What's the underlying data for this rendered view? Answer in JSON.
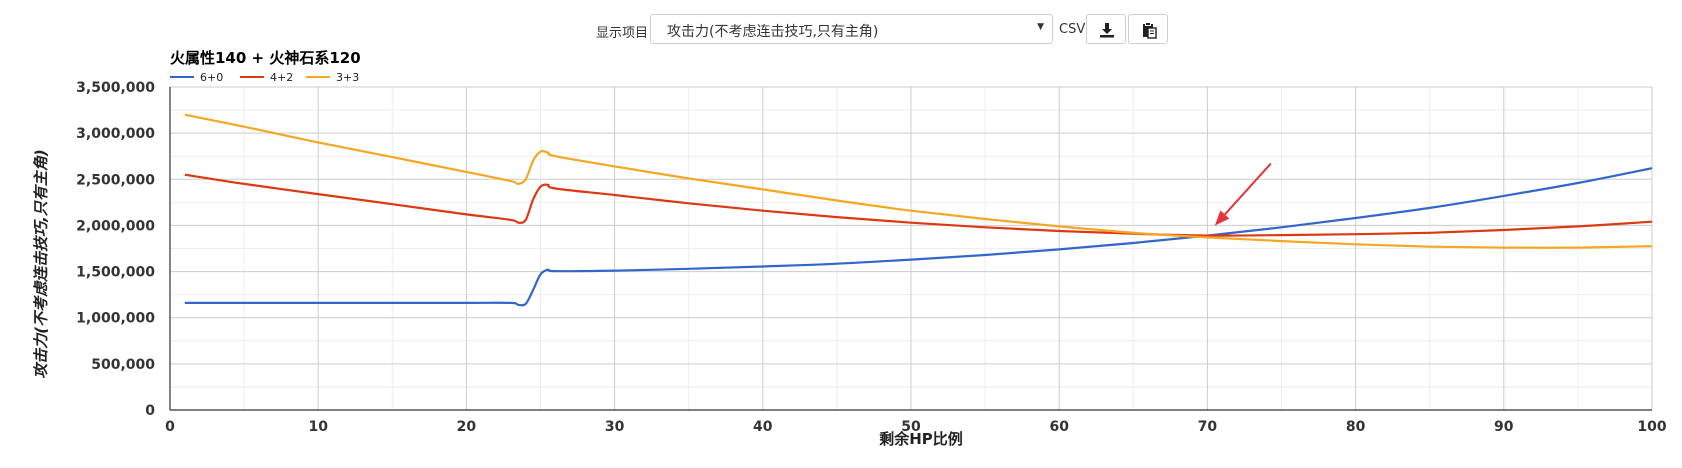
{
  "toolbar": {
    "display_label": "显示项目",
    "select_value": "攻击力(不考虑连击技巧,只有主角)",
    "csv_label": "CSV",
    "download_icon": "download-icon",
    "copy_icon": "clipboard-icon"
  },
  "annotation": {
    "arrow_color": "#e8333b",
    "points_to": [
      70.5,
      1890000
    ]
  },
  "chart_data": {
    "type": "line",
    "title": "火属性140 + 火神石系120",
    "xlabel": "剩余HP比例",
    "ylabel": "攻击力(不考虑连击技巧,只有主角)",
    "xlim": [
      0,
      100
    ],
    "ylim": [
      0,
      3500000
    ],
    "xticks": [
      0,
      10,
      20,
      30,
      40,
      50,
      60,
      70,
      80,
      90,
      100
    ],
    "yticks": [
      0,
      500000,
      1000000,
      1500000,
      2000000,
      2500000,
      3000000,
      3500000
    ],
    "xtick_labels": [
      "0",
      "10",
      "20",
      "30",
      "40",
      "50",
      "60",
      "70",
      "80",
      "90",
      "100"
    ],
    "ytick_labels": [
      "0",
      "500,000",
      "1,000,000",
      "1,500,000",
      "2,000,000",
      "2,500,000",
      "3,000,000",
      "3,500,000"
    ],
    "grid": true,
    "legend_position": "top-left",
    "series": [
      {
        "name": "6+0",
        "color": "#3366cc",
        "x": [
          1,
          5,
          10,
          15,
          20,
          23,
          23.5,
          24,
          24.5,
          25,
          25.5,
          26,
          30,
          35,
          40,
          45,
          50,
          55,
          60,
          65,
          70,
          75,
          80,
          85,
          90,
          95,
          100
        ],
        "y": [
          1160000,
          1160000,
          1160000,
          1160000,
          1160000,
          1160000,
          1140000,
          1150000,
          1300000,
          1470000,
          1520000,
          1505000,
          1510000,
          1530000,
          1555000,
          1585000,
          1630000,
          1680000,
          1740000,
          1810000,
          1890000,
          1980000,
          2080000,
          2190000,
          2320000,
          2460000,
          2620000
        ]
      },
      {
        "name": "4+2",
        "color": "#dc3912",
        "x": [
          1,
          5,
          10,
          15,
          20,
          23,
          23.5,
          24,
          24.5,
          25,
          25.5,
          26,
          30,
          35,
          40,
          45,
          50,
          55,
          60,
          65,
          70,
          75,
          80,
          85,
          90,
          95,
          100
        ],
        "y": [
          2550000,
          2450000,
          2340000,
          2230000,
          2120000,
          2060000,
          2030000,
          2060000,
          2280000,
          2420000,
          2440000,
          2400000,
          2330000,
          2240000,
          2160000,
          2090000,
          2030000,
          1980000,
          1940000,
          1910000,
          1890000,
          1895000,
          1905000,
          1920000,
          1950000,
          1990000,
          2040000
        ]
      },
      {
        "name": "3+3",
        "color": "#f5a623",
        "x": [
          1,
          5,
          10,
          15,
          20,
          23,
          23.5,
          24,
          24.5,
          25,
          25.5,
          26,
          30,
          35,
          40,
          45,
          50,
          55,
          60,
          65,
          70,
          75,
          80,
          85,
          90,
          95,
          100
        ],
        "y": [
          3200000,
          3070000,
          2900000,
          2740000,
          2580000,
          2480000,
          2450000,
          2500000,
          2700000,
          2800000,
          2790000,
          2750000,
          2640000,
          2510000,
          2390000,
          2270000,
          2160000,
          2070000,
          1990000,
          1920000,
          1870000,
          1830000,
          1795000,
          1770000,
          1760000,
          1760000,
          1775000
        ]
      }
    ]
  }
}
